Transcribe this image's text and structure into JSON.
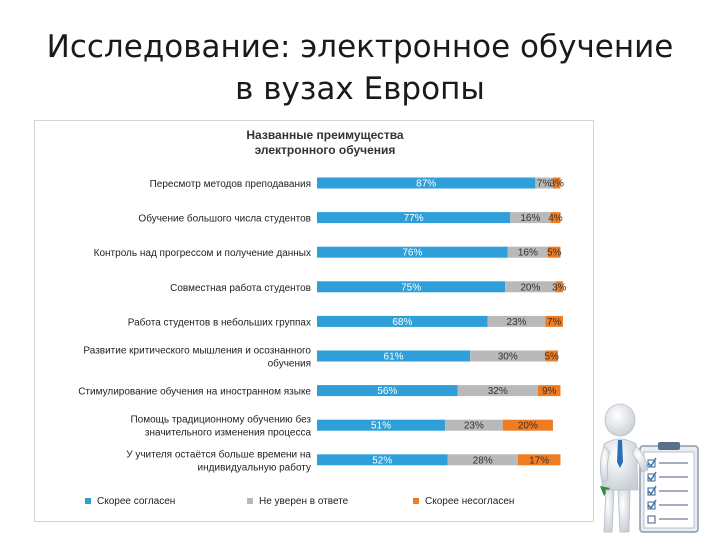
{
  "slide": {
    "title": "Исследование: электронное обучение в вузах Европы"
  },
  "chart_data": {
    "type": "bar",
    "orientation": "horizontal",
    "stacked": true,
    "title_lines": [
      "Названные преимущества",
      "электронного обучения"
    ],
    "categories": [
      [
        "Пересмотр методов преподавания"
      ],
      [
        "Обучение большого числа студентов"
      ],
      [
        "Контроль над прогрессом и получение данных"
      ],
      [
        "Совместная работа студентов"
      ],
      [
        "Работа студентов в небольших группах"
      ],
      [
        "Развитие критического мышления и осознанного",
        "обучения"
      ],
      [
        "Стимулирование обучения на иностранном языке"
      ],
      [
        "Помощь традиционному обучению без",
        "значительного изменения процесса"
      ],
      [
        "У учителя остаётся больше времени на",
        "индивидуальную работу"
      ]
    ],
    "series": [
      {
        "name": "Скорее согласен",
        "color": "#2e9fd8",
        "values": [
          87,
          77,
          76,
          75,
          68,
          61,
          56,
          51,
          52
        ]
      },
      {
        "name": "Не уверен в ответе",
        "color": "#b9b9b9",
        "values": [
          7,
          16,
          16,
          20,
          23,
          30,
          32,
          23,
          28
        ]
      },
      {
        "name": "Скорее несогласен",
        "color": "#f07c22",
        "values": [
          3,
          4,
          5,
          3,
          7,
          5,
          9,
          20,
          17
        ]
      }
    ],
    "value_suffix": "%",
    "xlim": [
      0,
      100
    ],
    "grid": false,
    "legend_position": "bottom"
  }
}
